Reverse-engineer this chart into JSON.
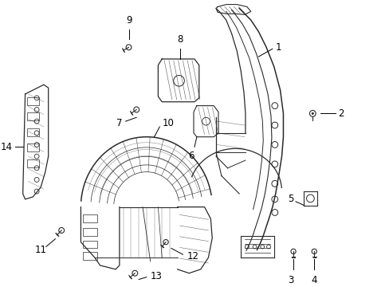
{
  "background_color": "#ffffff",
  "line_color": "#2a2a2a",
  "text_color": "#000000",
  "fig_w": 4.89,
  "fig_h": 3.6,
  "dpi": 100
}
